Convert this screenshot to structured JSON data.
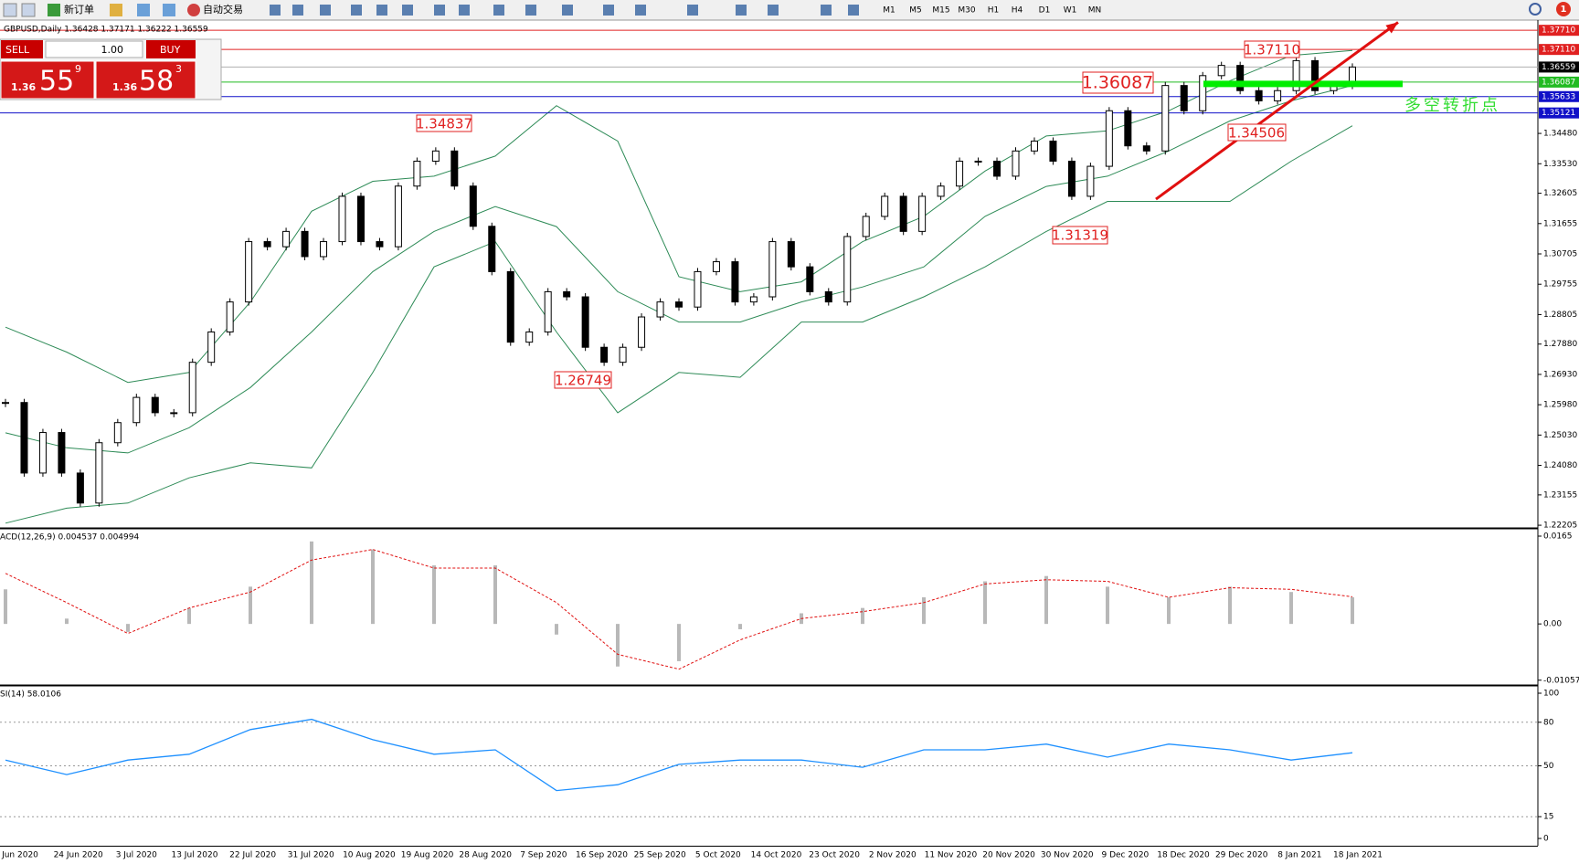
{
  "toolbar": {
    "new_order": "新订单",
    "auto_trading": "自动交易",
    "timeframes": [
      "M1",
      "M5",
      "M15",
      "M30",
      "H1",
      "H4",
      "D1",
      "W1",
      "MN"
    ],
    "notification_count": 1
  },
  "trade_panel": {
    "sell_label": "SELL",
    "buy_label": "BUY",
    "lot": "1.00",
    "sell": {
      "big": "1.36",
      "pips": "55",
      "point": "9"
    },
    "buy": {
      "big": "1.36",
      "pips": "58",
      "point": "3"
    }
  },
  "chart": {
    "type": "candlestick",
    "title": "GBPUSD,Daily  1.36428 1.37171 1.36222 1.36559",
    "ylim": [
      1.2215,
      1.3803
    ],
    "yticks": [
      1.22205,
      1.23155,
      {
        "value": 1.2408,
        "label": "1.24080"
      },
      {
        "value": 1.2503,
        "label": "1.25030"
      },
      {
        "value": 1.2598,
        "label": "1.25980"
      },
      {
        "value": 1.2693,
        "label": "1.26930"
      },
      {
        "value": 1.2788,
        "label": "1.27880"
      },
      1.28805,
      1.29755,
      1.30705,
      1.31655,
      1.32605,
      {
        "value": 1.3353,
        "label": "1.33530"
      },
      {
        "value": 1.3448,
        "label": "1.34480"
      }
    ],
    "levels": [
      {
        "value": 1.3771,
        "label": "1.37710",
        "color": "#e02020"
      },
      {
        "value": 1.3711,
        "label": "1.37110",
        "color": "#e02020"
      },
      {
        "value": 1.36559,
        "label": "1.36559",
        "color": "#000000"
      },
      {
        "value": 1.36087,
        "label": "1.36087",
        "color": "#22bb22"
      },
      {
        "value": 1.35633,
        "label": "1.35633",
        "color": "#1010c8"
      },
      {
        "value": 1.35121,
        "label": "1.35121",
        "color": "#1010c8"
      }
    ],
    "closes": [
      1.2605,
      1.2384,
      1.2511,
      1.2384,
      1.229,
      1.2479,
      1.2542,
      1.2621,
      1.2573,
      1.2573,
      1.2731,
      1.2826,
      1.292,
      1.3109,
      1.3093,
      1.3141,
      1.3062,
      1.3109,
      1.3251,
      1.3109,
      1.3093,
      1.3283,
      1.3361,
      1.3393,
      1.3283,
      1.3157,
      1.3015,
      1.2794,
      1.2826,
      1.2952,
      1.2936,
      1.2778,
      1.2731,
      1.2778,
      1.2873,
      1.292,
      1.2904,
      1.3015,
      1.3046,
      1.292,
      1.2936,
      1.3109,
      1.303,
      1.2952,
      1.292,
      1.3125,
      1.3188,
      1.3251,
      1.3141,
      1.3251,
      1.3283,
      1.3361,
      1.3361,
      1.3314,
      1.3393,
      1.3424,
      1.3361,
      1.3251,
      1.3345,
      1.3519,
      1.3409,
      1.3393,
      1.3598,
      1.3519,
      1.3629,
      1.3661,
      1.3582,
      1.355,
      1.3582,
      1.3676,
      1.3582,
      1.3598,
      1.3656
    ],
    "bands": {
      "color": "#2e8b57",
      "upper": [
        1.2841,
        1.2763,
        1.2668,
        1.2699,
        1.292,
        1.3204,
        1.3298,
        1.3314,
        1.3377,
        1.3535,
        1.3424,
        1.2999,
        1.2952,
        1.2983,
        1.3109,
        1.3188,
        1.333,
        1.344,
        1.3456,
        1.3519,
        1.3613,
        1.3692,
        1.3708
      ],
      "middle": [
        1.251,
        1.2463,
        1.2447,
        1.2526,
        1.2652,
        1.2826,
        1.3015,
        1.3141,
        1.3219,
        1.3156,
        1.2952,
        1.2857,
        1.2857,
        1.292,
        1.2967,
        1.303,
        1.3188,
        1.3282,
        1.3314,
        1.3393,
        1.3487,
        1.355,
        1.3598
      ],
      "lower": [
        1.2227,
        1.2274,
        1.229,
        1.2369,
        1.2416,
        1.24,
        1.2699,
        1.303,
        1.3109,
        1.2826,
        1.2573,
        1.2699,
        1.2684,
        1.2857,
        1.2857,
        1.2936,
        1.303,
        1.3141,
        1.3235,
        1.3235,
        1.3235,
        1.3361,
        1.3472
      ]
    },
    "support_bar": 1.3603,
    "trendline": [
      1.3242,
      1.3796
    ],
    "annotations": [
      "1.37110",
      "1.36087",
      "1.34837",
      "1.34506",
      "1.31319",
      "1.26749"
    ],
    "note": "多空转折点",
    "x_labels": [
      "Jun 2020",
      "24 Jun 2020",
      "3 Jul 2020",
      "13 Jul 2020",
      "22 Jul 2020",
      "31 Jul 2020",
      "10 Aug 2020",
      "19 Aug 2020",
      "28 Aug 2020",
      "7 Sep 2020",
      "16 Sep 2020",
      "25 Sep 2020",
      "5 Oct 2020",
      "14 Oct 2020",
      "23 Oct 2020",
      "2 Nov 2020",
      "11 Nov 2020",
      "20 Nov 2020",
      "30 Nov 2020",
      "9 Dec 2020",
      "18 Dec 2020",
      "29 Dec 2020",
      "8 Jan 2021",
      "18 Jan 2021"
    ]
  },
  "macd": {
    "label": "ACD(12,26,9) 0.004537 0.004994",
    "ylim": [
      -0.0113,
      0.0177
    ],
    "yticks": [
      0.0165,
      {
        "value": 0,
        "label": "0.00"
      },
      -0.010571
    ],
    "histogram": [
      0.0065,
      0.001,
      -0.0015,
      0.003,
      0.007,
      0.0155,
      0.014,
      0.011,
      0.011,
      -0.002,
      -0.008,
      -0.007,
      -0.001,
      0.002,
      0.003,
      0.005,
      0.008,
      0.009,
      0.007,
      0.005,
      0.007,
      0.006,
      0.005
    ],
    "signal": [
      0.0095,
      0.004,
      -0.0018,
      0.003,
      0.006,
      0.012,
      0.014,
      0.0105,
      0.0105,
      0.004,
      -0.0057,
      -0.0085,
      -0.003,
      0.001,
      0.0023,
      0.004,
      0.0075,
      0.0083,
      0.008,
      0.005,
      0.0068,
      0.0065,
      0.0051
    ]
  },
  "rsi": {
    "label": "SI(14) 58.0106",
    "ylim": [
      -5,
      104.4
    ],
    "yticks": [
      100,
      80,
      50,
      15,
      0
    ],
    "levels": [
      80,
      50,
      15
    ],
    "values": [
      54,
      44,
      54,
      58,
      75,
      82,
      68,
      58,
      61,
      33,
      37,
      51,
      54,
      54,
      49,
      61,
      61,
      65,
      56,
      65,
      61,
      54,
      59
    ]
  }
}
